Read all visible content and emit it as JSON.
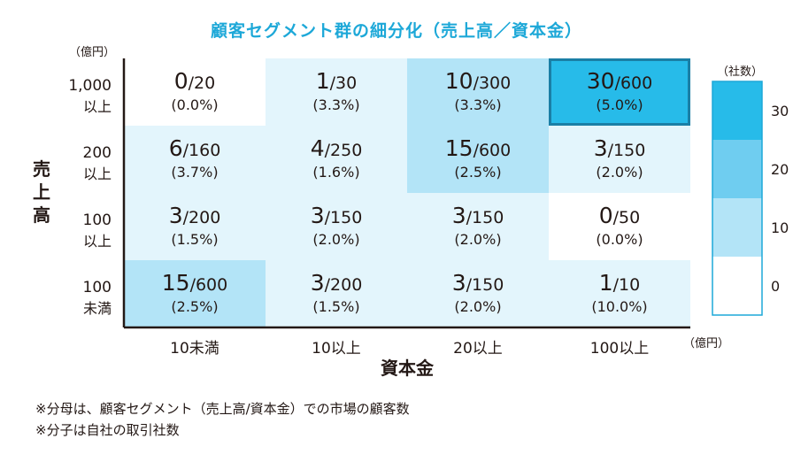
{
  "chart_data": {
    "type": "heatmap",
    "title": "顧客セグメント群の細分化（売上高／資本金）",
    "xlabel": "資本金",
    "ylabel": "売上高",
    "x_unit": "（億円）",
    "y_unit": "（億円）",
    "colorbar_unit": "（社数）",
    "x_categories": [
      "10未満",
      "10以上",
      "20以上",
      "100以上"
    ],
    "y_categories": [
      {
        "value": "1,000",
        "qual": "以上"
      },
      {
        "value": "200",
        "qual": "以上"
      },
      {
        "value": "100",
        "qual": "以上"
      },
      {
        "value": "100",
        "qual": "未満"
      }
    ],
    "cells": [
      [
        {
          "label": "0/20",
          "pct": "(0.0%)",
          "value": 0
        },
        {
          "label": "1/30",
          "pct": "(3.3%)",
          "value": 1
        },
        {
          "label": "10/300",
          "pct": "(3.3%)",
          "value": 10
        },
        {
          "label": "30/600",
          "pct": "(5.0%)",
          "value": 30,
          "highlight": true
        }
      ],
      [
        {
          "label": "6/160",
          "pct": "(3.7%)",
          "value": 6
        },
        {
          "label": "4/250",
          "pct": "(1.6%)",
          "value": 4
        },
        {
          "label": "15/600",
          "pct": "(2.5%)",
          "value": 15
        },
        {
          "label": "3/150",
          "pct": "(2.0%)",
          "value": 3
        }
      ],
      [
        {
          "label": "3/200",
          "pct": "(1.5%)",
          "value": 3
        },
        {
          "label": "3/150",
          "pct": "(2.0%)",
          "value": 3
        },
        {
          "label": "3/150",
          "pct": "(2.0%)",
          "value": 3
        },
        {
          "label": "0/50",
          "pct": "(0.0%)",
          "value": 0
        }
      ],
      [
        {
          "label": "15/600",
          "pct": "(2.5%)",
          "value": 15
        },
        {
          "label": "3/200",
          "pct": "(1.5%)",
          "value": 3
        },
        {
          "label": "3/150",
          "pct": "(2.0%)",
          "value": 3
        },
        {
          "label": "1/10",
          "pct": "(10.0%)",
          "value": 1
        }
      ]
    ],
    "colorbar": {
      "ticks": [
        0,
        10,
        20,
        30
      ],
      "bands": [
        {
          "from": 0,
          "to": 1,
          "color": "#ffffff"
        },
        {
          "from": 1,
          "to": 10,
          "color": "#e3f5fc"
        },
        {
          "from": 10,
          "to": 20,
          "color": "#b3e4f7"
        },
        {
          "from": 20,
          "to": 30,
          "color": "#6fcdf0"
        },
        {
          "from": 30,
          "to": 40,
          "color": "#27bbe9"
        }
      ]
    },
    "colors": {
      "border": "#1da8d8",
      "highlight_border": "#1a7fa6",
      "axis": "#231815"
    }
  },
  "notes": [
    "※分母は、顧客セグメント（売上高/資本金）での市場の顧客数",
    "※分子は自社の取引社数"
  ]
}
